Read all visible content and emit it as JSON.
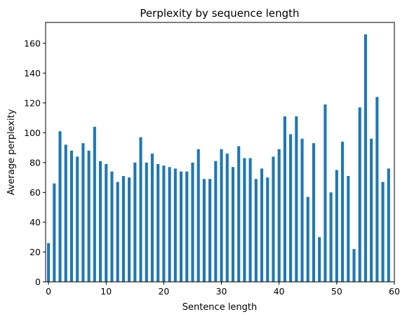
{
  "chart_data": {
    "type": "bar",
    "title": "Perplexity by sequence length",
    "xlabel": "Sentence length",
    "ylabel": "Average perplexity",
    "xlim": [
      -0.5,
      60
    ],
    "ylim": [
      0,
      174
    ],
    "xticks": [
      0,
      10,
      20,
      30,
      40,
      50,
      60
    ],
    "yticks": [
      0,
      20,
      40,
      60,
      80,
      100,
      120,
      140,
      160
    ],
    "grid": false,
    "bar_color": "#1f77b4",
    "x": [
      0,
      1,
      2,
      3,
      4,
      5,
      6,
      7,
      8,
      9,
      10,
      11,
      12,
      13,
      14,
      15,
      16,
      17,
      18,
      19,
      20,
      21,
      22,
      23,
      24,
      25,
      26,
      27,
      28,
      29,
      30,
      31,
      32,
      33,
      34,
      35,
      36,
      37,
      38,
      39,
      40,
      41,
      42,
      43,
      44,
      45,
      46,
      47,
      48,
      49,
      50,
      51,
      52,
      53,
      54,
      55,
      56,
      57,
      58,
      59
    ],
    "values": [
      26,
      66,
      101,
      92,
      88,
      84,
      93,
      88,
      104,
      81,
      79,
      74,
      67,
      71,
      70,
      80,
      97,
      80,
      86,
      79,
      78,
      77,
      76,
      74,
      74,
      80,
      89,
      69,
      69,
      81,
      89,
      86,
      77,
      91,
      83,
      83,
      69,
      76,
      70,
      84,
      89,
      111,
      99,
      111,
      96,
      57,
      93,
      30,
      119,
      60,
      75,
      94,
      71,
      22,
      117,
      166,
      96,
      124,
      67,
      76
    ]
  }
}
